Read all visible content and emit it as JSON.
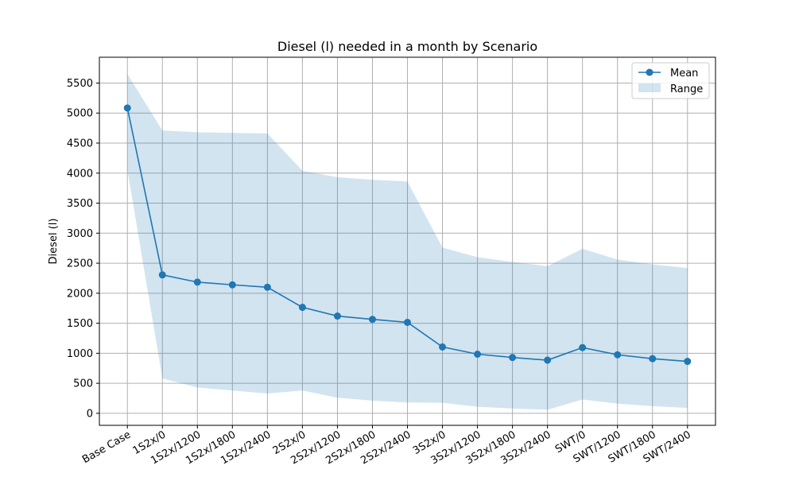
{
  "chart_data": {
    "type": "line",
    "title": "Diesel (l) needed in a month by Scenario",
    "xlabel": "",
    "ylabel": "Diesel (l)",
    "categories": [
      "Base Case",
      "1S2x/0",
      "1S2x/1200",
      "1S2x/1800",
      "1S2x/2400",
      "2S2x/0",
      "2S2x/1200",
      "2S2x/1800",
      "2S2x/2400",
      "3S2x/0",
      "3S2x/1200",
      "3S2x/1800",
      "3S2x/2400",
      "SWT/0",
      "SWT/1200",
      "SWT/1800",
      "SWT/2400"
    ],
    "series": [
      {
        "name": "Mean",
        "kind": "line-markers",
        "values": [
          5085,
          2305,
          2185,
          2140,
          2100,
          1765,
          1620,
          1565,
          1515,
          1105,
          985,
          930,
          885,
          1095,
          975,
          910,
          865
        ]
      },
      {
        "name": "Range",
        "kind": "band",
        "upper": [
          5650,
          4710,
          4680,
          4670,
          4660,
          4040,
          3930,
          3890,
          3860,
          2760,
          2600,
          2520,
          2450,
          2740,
          2560,
          2480,
          2420
        ],
        "lower": [
          4060,
          580,
          430,
          380,
          330,
          380,
          260,
          210,
          180,
          175,
          110,
          80,
          60,
          230,
          160,
          120,
          90
        ]
      }
    ],
    "ylim": [
      -200,
      5930
    ],
    "yticks": [
      0,
      500,
      1000,
      1500,
      2000,
      2500,
      3000,
      3500,
      4000,
      4500,
      5000,
      5500
    ],
    "grid": true,
    "legend_position": "top-right",
    "colors": {
      "line": "#1f77b4",
      "band": "#1f77b4",
      "grid": "#b0b0b0"
    }
  }
}
